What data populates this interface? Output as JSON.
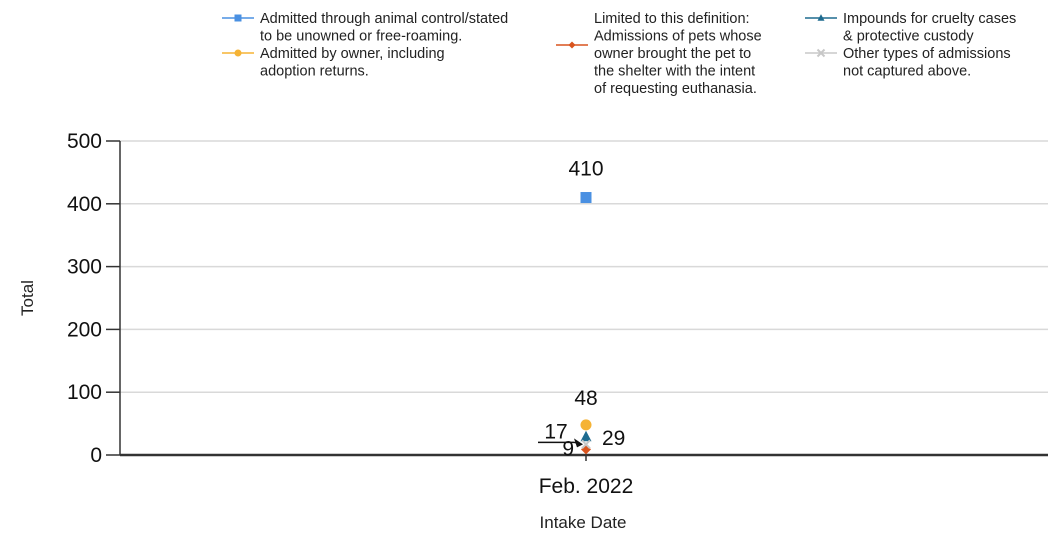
{
  "chart_data": {
    "type": "scatter",
    "xlabel": "Intake Date",
    "ylabel": "Total",
    "categories": [
      "Feb. 2022"
    ],
    "ylim": [
      0,
      500
    ],
    "yticks": [
      0,
      100,
      200,
      300,
      400,
      500
    ],
    "grid": true,
    "legend_position": "top",
    "series": [
      {
        "legend_lines": [
          "Admitted through animal control/stated",
          "to be unowned or free-roaming."
        ],
        "color": "#4a90e2",
        "marker": "square",
        "values": [
          410
        ],
        "label": "410"
      },
      {
        "legend_lines": [
          "Admitted by owner, including",
          "adoption returns."
        ],
        "color": "#f5b335",
        "marker": "circle",
        "values": [
          48
        ],
        "label": "48"
      },
      {
        "legend_lines": [
          "Limited to this definition:",
          "Admissions of pets whose",
          "owner brought the pet to",
          "the shelter with the intent",
          "of requesting euthanasia."
        ],
        "color": "#d9541e",
        "marker": "diamond",
        "values": [
          9
        ],
        "label": "9"
      },
      {
        "legend_lines": [
          "Impounds for cruelty cases",
          "& protective custody"
        ],
        "color": "#1e6b8f",
        "marker": "triangle",
        "values": [
          29
        ],
        "label": "29"
      },
      {
        "legend_lines": [
          "Other types of admissions",
          "not captured above."
        ],
        "color": "#c8c8c8",
        "marker": "x",
        "values": [
          17
        ],
        "label": "17"
      }
    ]
  }
}
